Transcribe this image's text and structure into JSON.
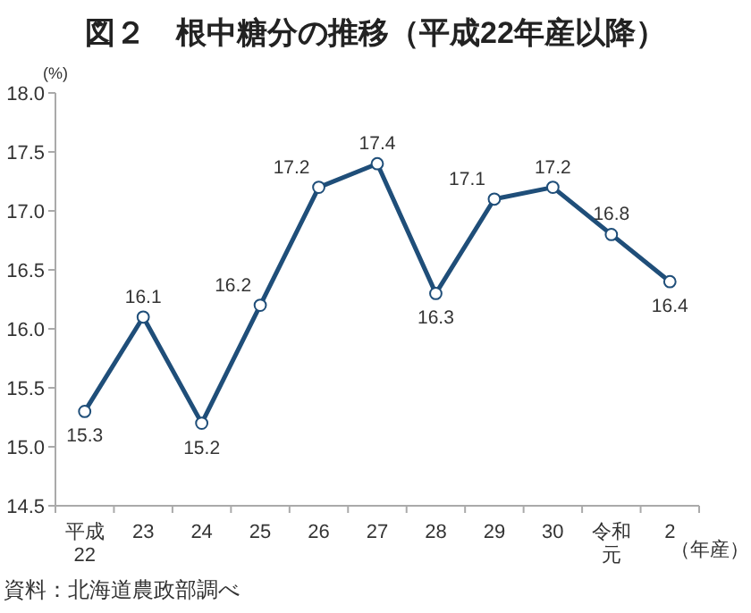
{
  "chart_data": {
    "type": "line",
    "title": "図２　根中糖分の推移（平成22年産以降）",
    "ylabel": "(%)",
    "xlabel": "（年産）",
    "categories": [
      "平成22",
      "23",
      "24",
      "25",
      "26",
      "27",
      "28",
      "29",
      "30",
      "令和元",
      "2"
    ],
    "series": [
      {
        "color": "#1f4e79",
        "values": [
          15.3,
          16.1,
          15.2,
          16.2,
          17.2,
          17.4,
          16.3,
          17.1,
          17.2,
          16.8,
          16.4
        ]
      }
    ],
    "ylim": [
      14.5,
      18.0
    ],
    "yticks": [
      {
        "value": 14.5,
        "label": "14.5"
      },
      {
        "value": 15,
        "label": "15.0"
      },
      {
        "value": 15.5,
        "label": "15.5"
      },
      {
        "value": 16,
        "label": "16.0"
      },
      {
        "value": 16.5,
        "label": "16.5"
      },
      {
        "value": 17,
        "label": "17.0"
      },
      {
        "value": 17.5,
        "label": "17.5"
      },
      {
        "value": 18,
        "label": "18.0"
      }
    ],
    "marker": "circle",
    "line_style": "solid",
    "data_labels": true,
    "grid": false,
    "annotations": [
      "資料：北海道農政部調べ"
    ]
  }
}
